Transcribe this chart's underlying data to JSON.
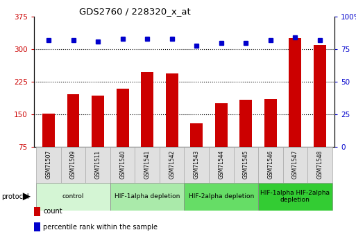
{
  "title": "GDS2760 / 228320_x_at",
  "samples": [
    "GSM71507",
    "GSM71509",
    "GSM71511",
    "GSM71540",
    "GSM71541",
    "GSM71542",
    "GSM71543",
    "GSM71544",
    "GSM71545",
    "GSM71546",
    "GSM71547",
    "GSM71548"
  ],
  "counts": [
    152,
    196,
    193,
    210,
    248,
    244,
    130,
    175,
    183,
    185,
    325,
    310
  ],
  "percentile_ranks": [
    82,
    82,
    81,
    83,
    83,
    83,
    78,
    80,
    80,
    82,
    84,
    82
  ],
  "ylim_left": [
    75,
    375
  ],
  "ylim_right": [
    0,
    100
  ],
  "yticks_left": [
    75,
    150,
    225,
    300,
    375
  ],
  "yticks_right": [
    0,
    25,
    50,
    75,
    100
  ],
  "bar_color": "#cc0000",
  "dot_color": "#0000cc",
  "bg_color": "#ffffff",
  "protocol_groups": [
    {
      "label": "control",
      "start": 0,
      "end": 3,
      "color": "#d4f5d4"
    },
    {
      "label": "HIF-1alpha depletion",
      "start": 3,
      "end": 6,
      "color": "#aaeaaa"
    },
    {
      "label": "HIF-2alpha depletion",
      "start": 6,
      "end": 9,
      "color": "#66dd66"
    },
    {
      "label": "HIF-1alpha HIF-2alpha\ndepletion",
      "start": 9,
      "end": 12,
      "color": "#33cc33"
    }
  ],
  "legend_items": [
    {
      "label": "count",
      "color": "#cc0000"
    },
    {
      "label": "percentile rank within the sample",
      "color": "#0000cc"
    }
  ],
  "figsize": [
    5.13,
    3.45
  ],
  "dpi": 100
}
